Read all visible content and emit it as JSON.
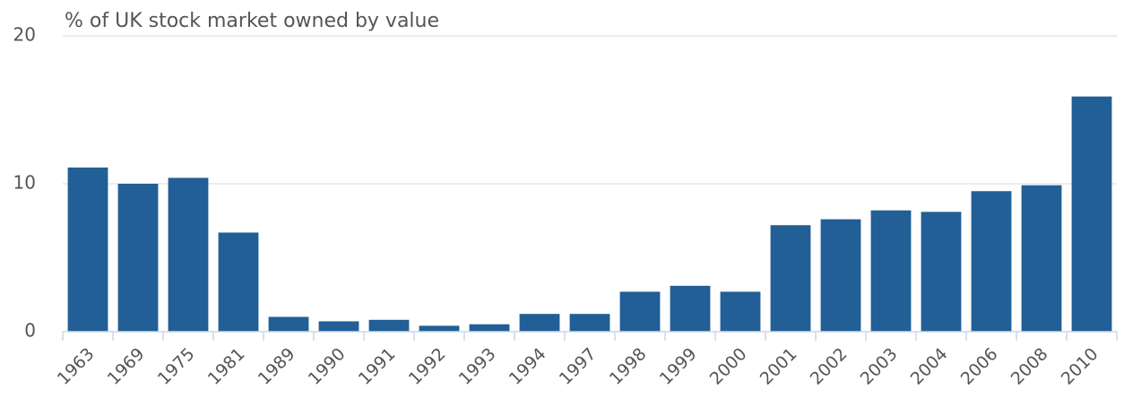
{
  "chart_data": {
    "type": "bar",
    "title": "% of UK stock market owned by value",
    "categories": [
      "1963",
      "1969",
      "1975",
      "1981",
      "1989",
      "1990",
      "1991",
      "1992",
      "1993",
      "1994",
      "1997",
      "1998",
      "1999",
      "2000",
      "2001",
      "2002",
      "2003",
      "2004",
      "2006",
      "2008",
      "2010"
    ],
    "values": [
      11.1,
      10.0,
      10.4,
      6.7,
      1.0,
      0.7,
      0.8,
      0.4,
      0.5,
      1.2,
      1.2,
      2.7,
      3.1,
      2.7,
      7.2,
      7.6,
      8.2,
      8.1,
      9.5,
      9.9,
      15.9
    ],
    "color": "#215f96",
    "ylim": [
      0,
      20
    ],
    "yticks": [
      0,
      10,
      20
    ],
    "grid": true
  }
}
